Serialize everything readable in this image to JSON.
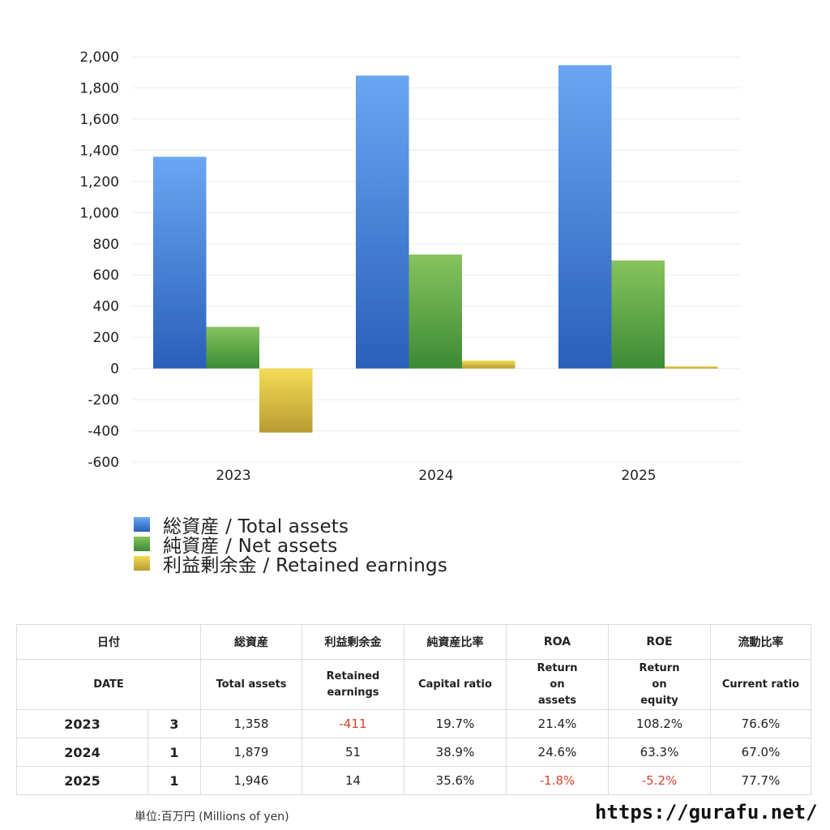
{
  "chart_data": {
    "type": "bar",
    "categories": [
      "2023",
      "2024",
      "2025"
    ],
    "series": [
      {
        "name": "総資産 / Total assets",
        "values": [
          1358,
          1879,
          1946
        ],
        "color_top": "#6aa6f2",
        "color_bottom": "#2a5fba"
      },
      {
        "name": "純資産 / Net assets",
        "values": [
          267,
          731,
          693
        ],
        "color_top": "#86c45c",
        "color_bottom": "#3c8a36"
      },
      {
        "name": "利益剰余金 / Retained earnings",
        "values": [
          -411,
          51,
          14
        ],
        "color_top": "#f3dc55",
        "color_bottom": "#b89c32"
      }
    ],
    "yticks": [
      "2,000",
      "1,800",
      "1,600",
      "1,400",
      "1,200",
      "1,000",
      "800",
      "600",
      "400",
      "200",
      "0",
      "-200",
      "-400",
      "-600"
    ],
    "ylim": [
      -600,
      2000
    ],
    "grid": true,
    "legend": "bottom-left"
  },
  "table": {
    "headers_jp": [
      "日付",
      "総資産",
      "利益剰余金",
      "純資産比率",
      "ROA",
      "ROE",
      "流動比率"
    ],
    "headers_en": [
      "DATE",
      "Total assets",
      "Retained earnings",
      "Capital ratio",
      "Return on assets",
      "Return on equity",
      "Current ratio"
    ],
    "rows": [
      {
        "year": "2023",
        "months": "3",
        "total_assets": "1,358",
        "retained": "-411",
        "capital_ratio": "19.7%",
        "roa": "21.4%",
        "roe": "108.2%",
        "current_ratio": "76.6%"
      },
      {
        "year": "2024",
        "months": "1",
        "total_assets": "1,879",
        "retained": "51",
        "capital_ratio": "38.9%",
        "roa": "24.6%",
        "roe": "63.3%",
        "current_ratio": "67.0%"
      },
      {
        "year": "2025",
        "months": "1",
        "total_assets": "1,946",
        "retained": "14",
        "capital_ratio": "35.6%",
        "roa": "-1.8%",
        "roe": "-5.2%",
        "current_ratio": "77.7%"
      }
    ]
  },
  "footer": {
    "unit": "単位:百万円 (Millions of yen)",
    "url": "https://gurafu.net/"
  },
  "colors": {
    "negative": "#d9412b",
    "grid": "#ececec"
  }
}
